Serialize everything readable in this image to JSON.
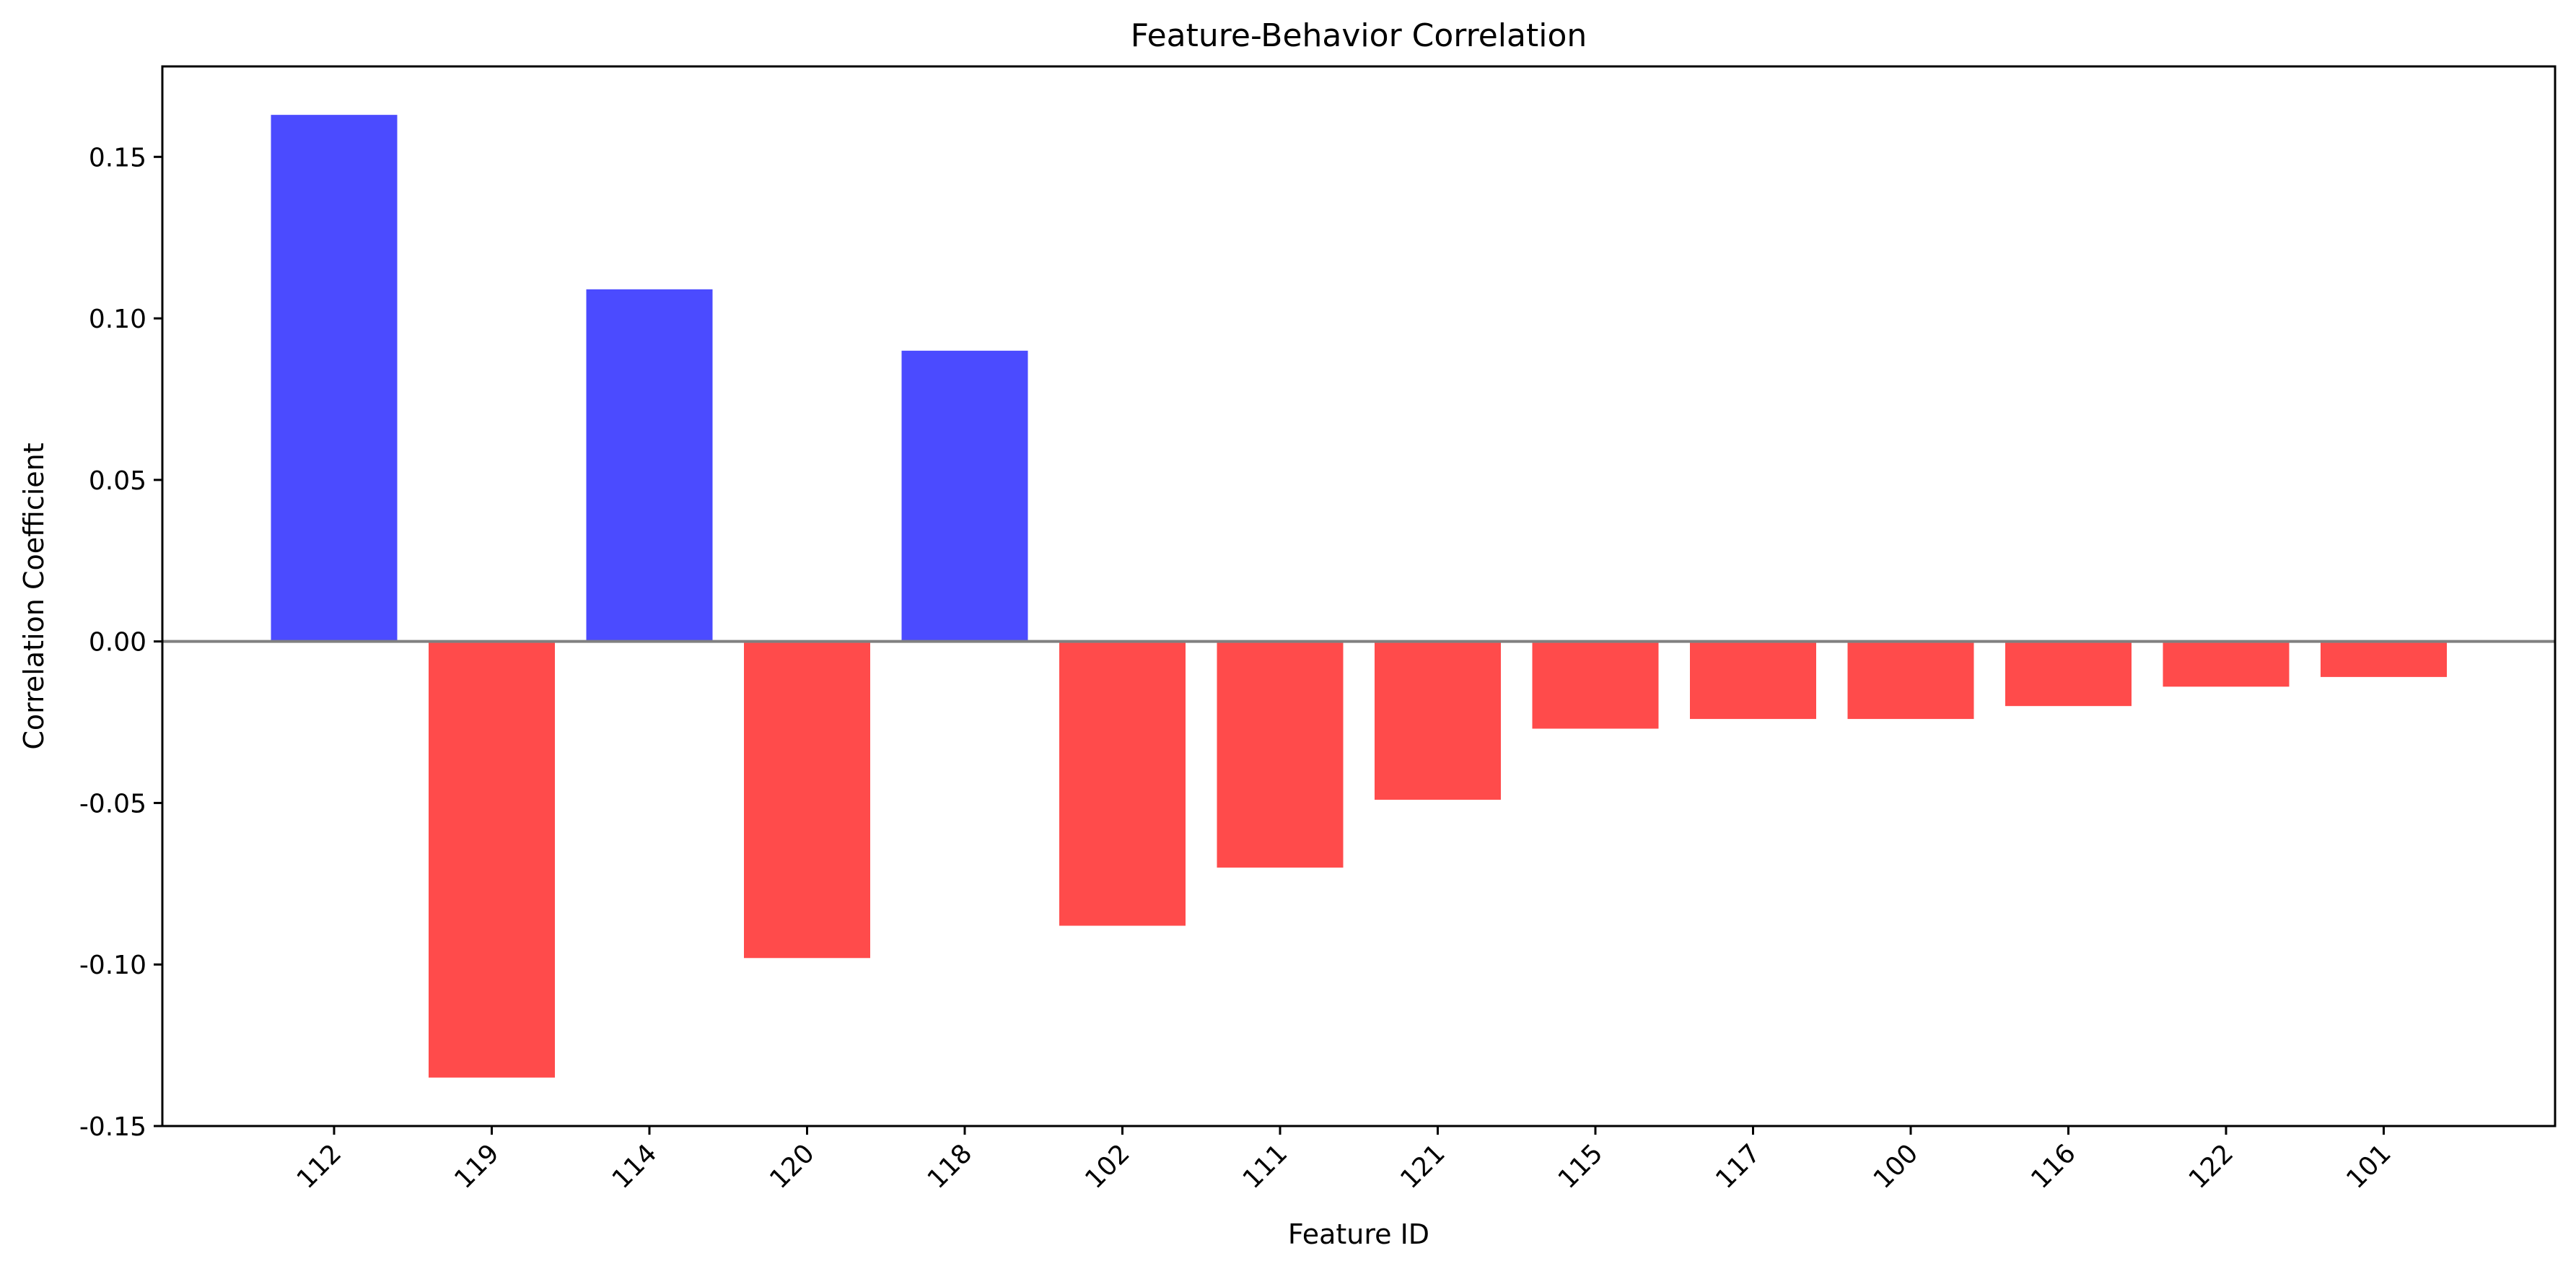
{
  "chart_data": {
    "type": "bar",
    "title": "Feature-Behavior Correlation",
    "xlabel": "Feature ID",
    "ylabel": "Correlation Coefficient",
    "categories": [
      "112",
      "119",
      "114",
      "120",
      "118",
      "102",
      "111",
      "121",
      "115",
      "117",
      "100",
      "116",
      "122",
      "101"
    ],
    "values": [
      0.163,
      -0.135,
      0.109,
      -0.098,
      0.09,
      -0.088,
      -0.07,
      -0.049,
      -0.027,
      -0.024,
      -0.024,
      -0.02,
      -0.014,
      -0.011
    ],
    "ylim": [
      -0.15,
      0.178
    ],
    "yticks": [
      0.15,
      0.1,
      0.05,
      0.0,
      -0.05,
      -0.1,
      -0.15
    ],
    "ytick_labels": [
      "0.15",
      "0.10",
      "0.05",
      "0.00",
      "-0.05",
      "-0.10",
      "-0.15"
    ],
    "grid": false,
    "legend": "none",
    "colors": {
      "positive": "#4b4bff",
      "negative": "#ff4b4b",
      "zero_line": "#808080",
      "axes": "#000000"
    }
  }
}
